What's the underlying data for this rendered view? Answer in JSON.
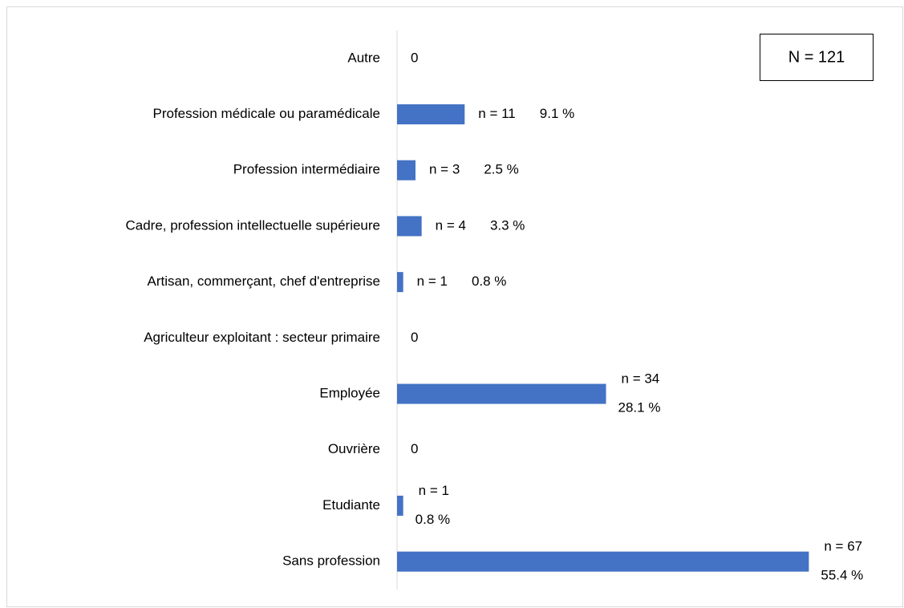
{
  "chart_data": {
    "type": "bar",
    "orientation": "horizontal",
    "annotation": "N = 121",
    "categories": [
      "Autre",
      "Profession médicale ou paramédicale",
      "Profession intermédiaire",
      "Cadre, profession intellectuelle supérieure",
      "Artisan, commerçant, chef d'entreprise",
      "Agriculteur exploitant : secteur primaire",
      "Employée",
      "Ouvrière",
      "Etudiante",
      "Sans profession"
    ],
    "values": [
      0,
      11,
      3,
      4,
      1,
      0,
      34,
      0,
      1,
      67
    ],
    "value_labels": [
      "0",
      "n = 11",
      "n = 3",
      "n = 4",
      "n = 1",
      "0",
      "n = 34",
      "0",
      "n = 1",
      "n = 67"
    ],
    "percentages": [
      null,
      9.1,
      2.5,
      3.3,
      0.8,
      null,
      28.1,
      null,
      0.8,
      55.4
    ],
    "percentage_labels": [
      null,
      "9.1 %",
      "2.5 %",
      "3.3 %",
      "0.8 %",
      null,
      "28.1 %",
      null,
      "0.8 %",
      "55.4 %"
    ],
    "color": "#4472c4",
    "xlim": [
      0,
      80
    ]
  }
}
